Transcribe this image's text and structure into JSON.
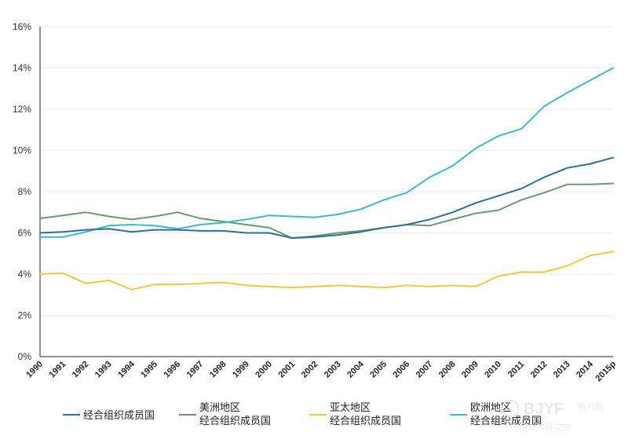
{
  "chart_data": {
    "type": "line",
    "title": "",
    "xlabel": "",
    "ylabel": "",
    "ylim": [
      0,
      16
    ],
    "yticks": [
      "0%",
      "2%",
      "4%",
      "6%",
      "8%",
      "10%",
      "12%",
      "14%",
      "16%"
    ],
    "ytick_values": [
      0,
      2,
      4,
      6,
      8,
      10,
      12,
      14,
      16
    ],
    "grid": "horizontal",
    "legend_position": "bottom",
    "categories": [
      "1990",
      "1991",
      "1992",
      "1993",
      "1994",
      "1995",
      "1996",
      "1997",
      "1998",
      "1999",
      "2000",
      "2001",
      "2002",
      "2003",
      "2004",
      "2005",
      "2006",
      "2007",
      "2008",
      "2009",
      "2010",
      "2011",
      "2012",
      "2013",
      "2014",
      "2015p"
    ],
    "series": [
      {
        "name": "经合组织成员国",
        "legend_lines": [
          "经合组织成员国"
        ],
        "color": "#2e7193",
        "values": [
          6.0,
          6.05,
          6.15,
          6.2,
          6.05,
          6.15,
          6.15,
          6.1,
          6.1,
          6.0,
          6.0,
          5.75,
          5.8,
          5.9,
          6.05,
          6.25,
          6.4,
          6.65,
          7.0,
          7.45,
          7.8,
          8.15,
          8.7,
          9.15,
          9.35,
          9.65
        ]
      },
      {
        "name": "美洲地区经合组织成员国",
        "legend_lines": [
          "美洲地区",
          "经合组织成员国"
        ],
        "color": "#6a9a6e",
        "values": [
          6.7,
          6.85,
          7.0,
          6.8,
          6.65,
          6.8,
          7.0,
          6.7,
          6.55,
          6.4,
          6.25,
          5.75,
          5.85,
          6.0,
          6.1,
          6.25,
          6.4,
          6.35,
          6.65,
          6.95,
          7.1,
          7.6,
          7.95,
          8.35,
          8.35,
          8.4
        ]
      },
      {
        "name": "亚太地区经合组织成员国",
        "legend_lines": [
          "亚太地区",
          "经合组织成员国"
        ],
        "color": "#f3c93c",
        "values": [
          4.0,
          4.05,
          3.55,
          3.7,
          3.25,
          3.5,
          3.5,
          3.55,
          3.6,
          3.45,
          3.4,
          3.35,
          3.4,
          3.45,
          3.4,
          3.35,
          3.45,
          3.4,
          3.45,
          3.4,
          3.9,
          4.1,
          4.1,
          4.4,
          4.9,
          5.1
        ]
      },
      {
        "name": "欧洲地区经合组织成员国",
        "legend_lines": [
          "欧洲地区",
          "经合组织成员国"
        ],
        "color": "#3bb9cf",
        "values": [
          5.8,
          5.8,
          6.05,
          6.35,
          6.4,
          6.35,
          6.2,
          6.4,
          6.5,
          6.65,
          6.85,
          6.8,
          6.75,
          6.9,
          7.15,
          7.6,
          7.95,
          8.7,
          9.25,
          10.1,
          10.7,
          11.05,
          12.15,
          12.8,
          13.4,
          14.0
        ]
      }
    ]
  },
  "watermark": {
    "brand": "BJYF",
    "brand_cn": "百万网",
    "sub": "中国电气供应商"
  }
}
